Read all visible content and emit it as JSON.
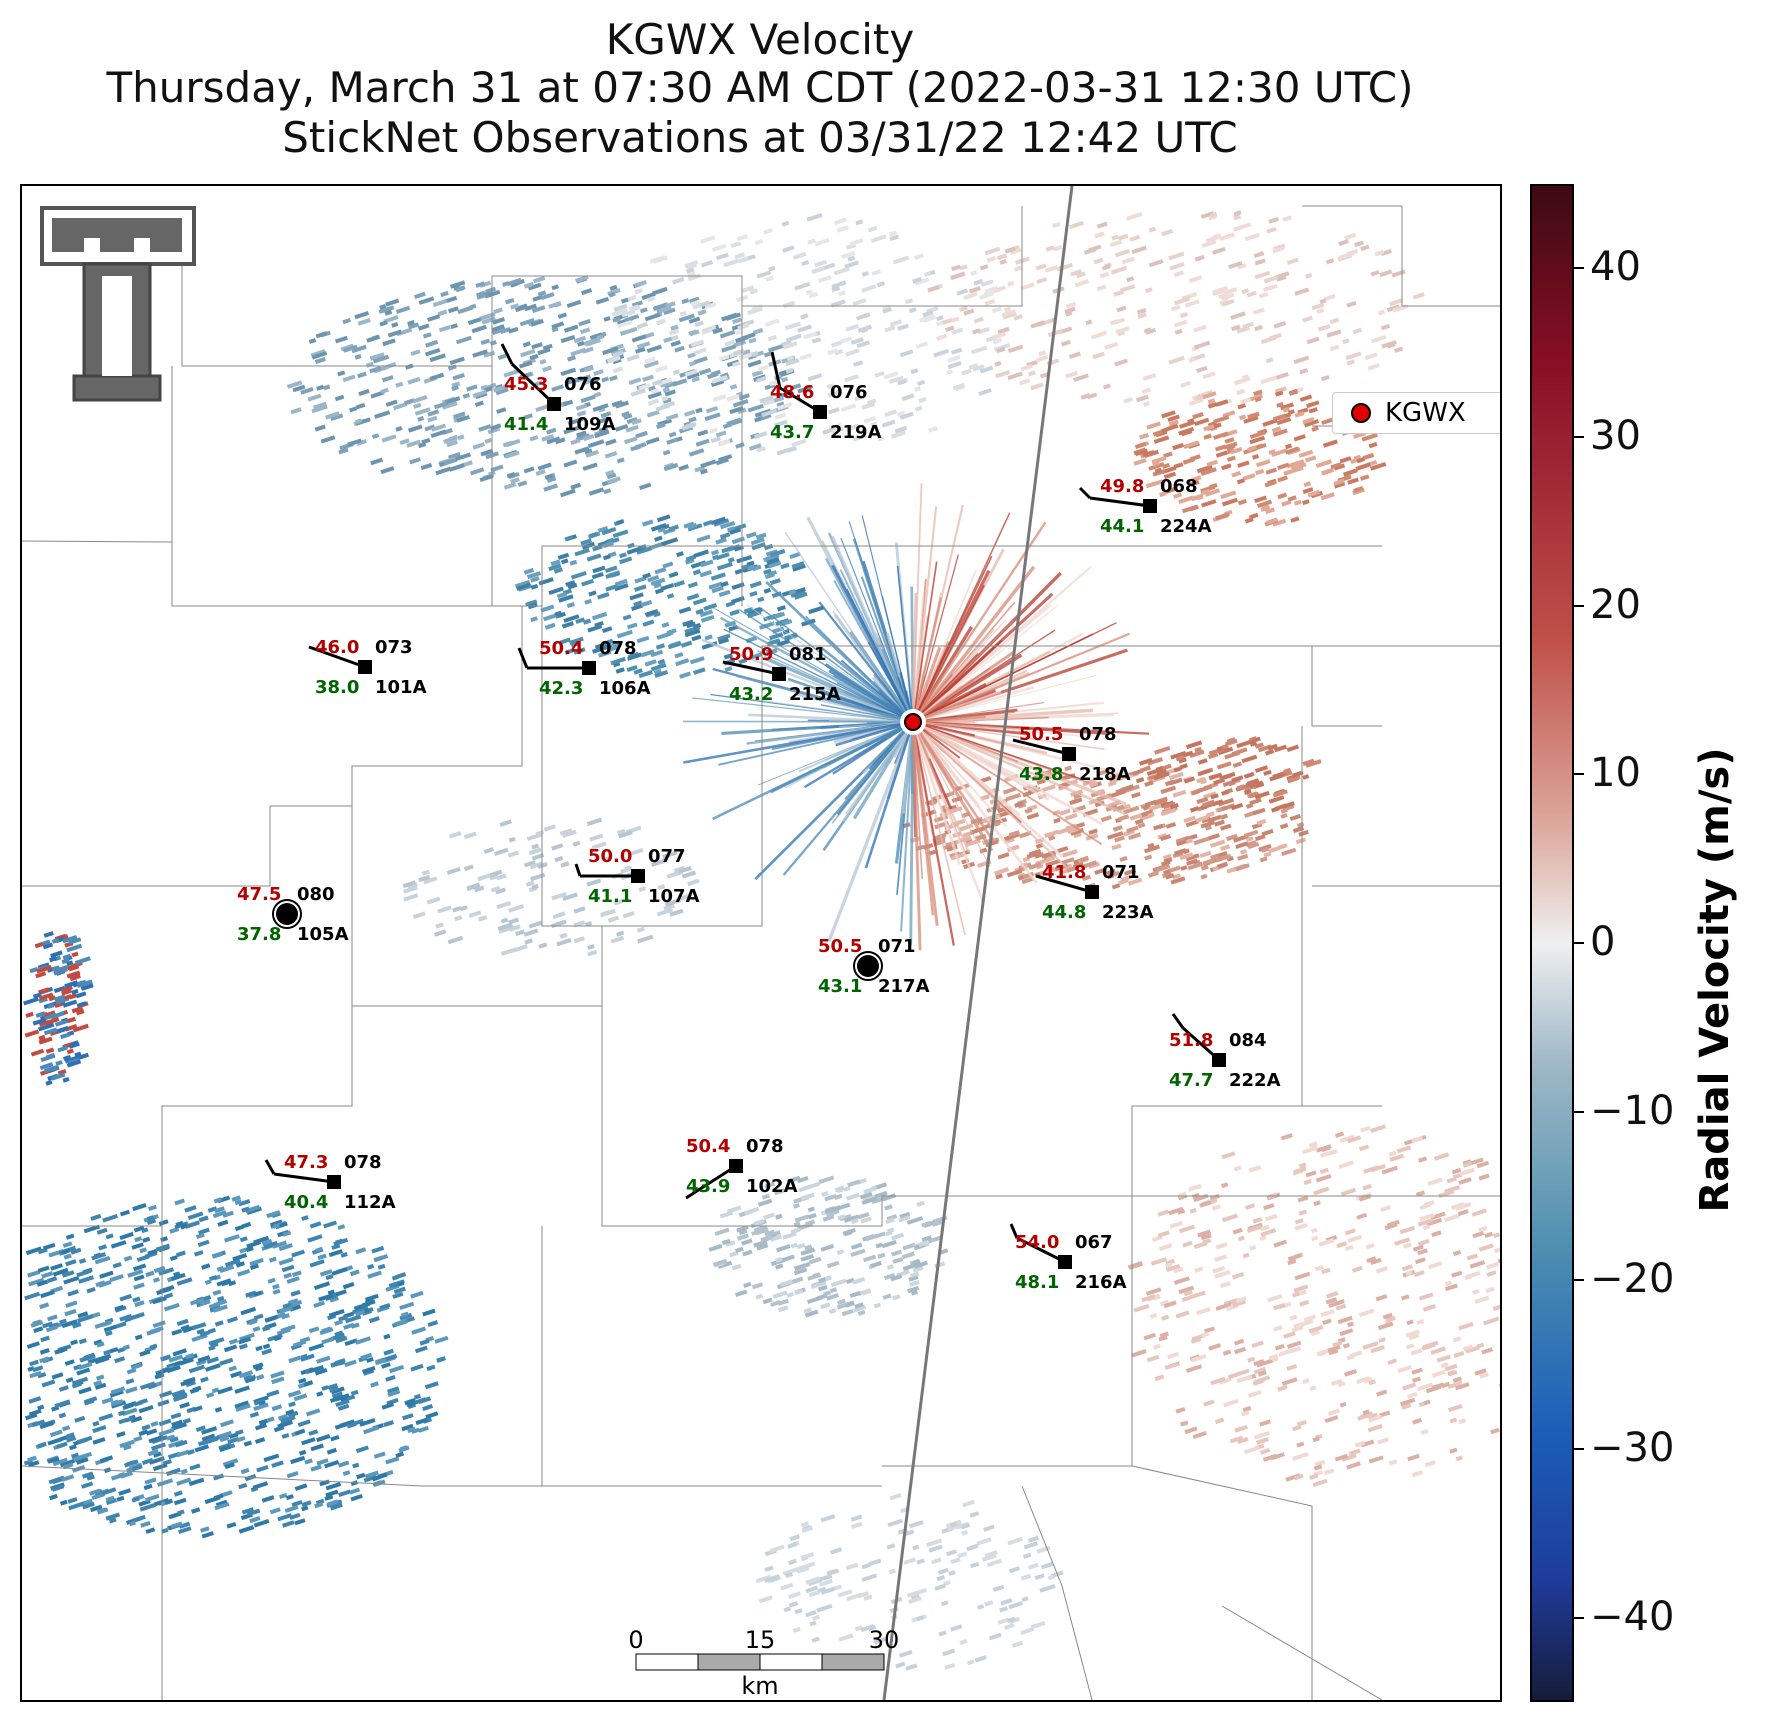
{
  "title": {
    "line1": "KGWX Velocity",
    "line2": "Thursday, March 31 at 07:30 AM CDT (2022-03-31 12:30 UTC)",
    "line3": "StickNet Observations at 03/31/22 12:42 UTC"
  },
  "legend": {
    "label": "KGWX"
  },
  "colorbar": {
    "label": "Radial Velocity (m/s)",
    "ticks": [
      "40",
      "30",
      "20",
      "10",
      "0",
      "−10",
      "−20",
      "−30",
      "−40"
    ],
    "range": [
      -45,
      45
    ],
    "colors": {
      "negative": "#1f3c9c",
      "zero": "#efefef",
      "positive": "#8a0f26"
    }
  },
  "scalebar": {
    "labels": [
      "0",
      "15",
      "30"
    ],
    "unit": "km"
  },
  "stations": [
    {
      "id": "109A",
      "temp": "45.3",
      "dew": "41.4",
      "dir": "076"
    },
    {
      "id": "219A",
      "temp": "48.6",
      "dew": "43.7",
      "dir": "076"
    },
    {
      "id": "224A",
      "temp": "49.8",
      "dew": "44.1",
      "dir": "068"
    },
    {
      "id": "101A",
      "temp": "46.0",
      "dew": "38.0",
      "dir": "073"
    },
    {
      "id": "106A",
      "temp": "50.4",
      "dew": "42.3",
      "dir": "078"
    },
    {
      "id": "215A",
      "temp": "50.9",
      "dew": "43.2",
      "dir": "081"
    },
    {
      "id": "218A",
      "temp": "50.5",
      "dew": "43.8",
      "dir": "078"
    },
    {
      "id": "107A",
      "temp": "50.0",
      "dew": "41.1",
      "dir": "077"
    },
    {
      "id": "223A",
      "temp": "41.8",
      "dew": "44.8",
      "dir": "071"
    },
    {
      "id": "105A",
      "temp": "47.5",
      "dew": "37.8",
      "dir": "080"
    },
    {
      "id": "217A",
      "temp": "50.5",
      "dew": "43.1",
      "dir": "071"
    },
    {
      "id": "222A",
      "temp": "51.8",
      "dew": "47.7",
      "dir": "084"
    },
    {
      "id": "112A",
      "temp": "47.3",
      "dew": "40.4",
      "dir": "078"
    },
    {
      "id": "102A",
      "temp": "50.4",
      "dew": "43.9",
      "dir": "078"
    },
    {
      "id": "216A",
      "temp": "54.0",
      "dew": "48.1",
      "dir": "067"
    }
  ],
  "colors": {
    "temp": "#b30000",
    "dew": "#006400",
    "radar_site": "#e00000"
  }
}
